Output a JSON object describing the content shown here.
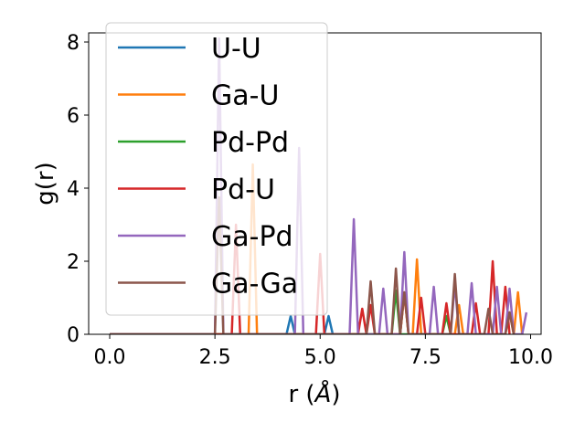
{
  "chart_data": {
    "type": "line",
    "title": "",
    "xlabel_prefix": "r (",
    "xlabel_unit": "Å",
    "xlabel_suffix": ")",
    "ylabel": "g(r)",
    "xlim": [
      -0.5,
      10.25
    ],
    "ylim": [
      0,
      8.25
    ],
    "xticks": [
      0.0,
      2.5,
      5.0,
      7.5,
      10.0
    ],
    "xtick_labels": [
      "0.0",
      "2.5",
      "5.0",
      "7.5",
      "10.0"
    ],
    "yticks": [
      0,
      2,
      4,
      6,
      8
    ],
    "ytick_labels": [
      "0",
      "2",
      "4",
      "6",
      "8"
    ],
    "grid": false,
    "legend_position": "top-left",
    "series": [
      {
        "name": "U-U",
        "color": "#1f77b4",
        "x": [
          0,
          4.2,
          4.3,
          4.4,
          5.1,
          5.2,
          5.3
        ],
        "y": [
          0,
          0,
          0.5,
          0,
          0,
          0.5,
          0
        ]
      },
      {
        "name": "Ga-U",
        "color": "#ff7f0e",
        "x": [
          0,
          3.3,
          3.4,
          3.5,
          6.9,
          7.0,
          7.1,
          7.2,
          7.3,
          7.4,
          7.5,
          8.2,
          8.3,
          8.4,
          9.4,
          9.5,
          9.6,
          9.7,
          9.8
        ],
        "y": [
          0,
          0,
          4.65,
          0,
          0,
          1.1,
          0,
          0,
          2.05,
          0,
          0,
          0,
          0.8,
          0,
          0,
          0.6,
          0,
          1.15,
          0
        ]
      },
      {
        "name": "Pd-Pd",
        "color": "#2ca02c",
        "x": [
          0,
          6.7,
          6.8,
          6.9,
          7.9,
          8.0,
          8.1
        ],
        "y": [
          0,
          0,
          1.2,
          0,
          0,
          0.5,
          0
        ]
      },
      {
        "name": "Pd-U",
        "color": "#d62728",
        "x": [
          0,
          2.9,
          3.0,
          3.1,
          4.9,
          5.0,
          5.1,
          5.9,
          6.0,
          6.1,
          6.2,
          6.3,
          6.9,
          7.0,
          7.1,
          7.3,
          7.4,
          7.5,
          7.9,
          8.0,
          8.1,
          8.6,
          8.7,
          8.8,
          9.0,
          9.1,
          9.2,
          9.3,
          9.4,
          9.5
        ],
        "y": [
          0,
          0,
          3.0,
          0,
          0,
          2.2,
          0,
          0,
          0.7,
          0,
          0.8,
          0,
          0,
          1.15,
          0,
          0,
          1.0,
          0,
          0,
          0.85,
          0,
          0,
          0.85,
          0,
          0,
          2.0,
          0,
          0,
          1.3,
          0
        ]
      },
      {
        "name": "Ga-Pd",
        "color": "#9467bd",
        "x": [
          0,
          2.5,
          2.6,
          2.7,
          4.4,
          4.5,
          4.6,
          5.7,
          5.8,
          5.9,
          6.4,
          6.5,
          6.6,
          6.9,
          7.0,
          7.1,
          7.6,
          7.7,
          7.8,
          8.1,
          8.2,
          8.3,
          8.5,
          8.6,
          8.7,
          9.1,
          9.2,
          9.3,
          9.4,
          9.5,
          9.6,
          9.8,
          9.9
        ],
        "y": [
          0,
          0,
          8.1,
          0,
          0,
          5.1,
          0,
          0,
          3.15,
          0,
          0,
          1.25,
          0,
          0,
          2.25,
          0,
          0,
          1.3,
          0,
          0,
          1.4,
          0,
          0,
          1.4,
          0,
          0,
          1.3,
          0,
          0,
          1.25,
          0,
          0,
          0.6
        ]
      },
      {
        "name": "Ga-Ga",
        "color": "#8c564b",
        "x": [
          0,
          2.5,
          2.6,
          2.7,
          6.1,
          6.2,
          6.3,
          6.7,
          6.8,
          6.9,
          7.0,
          7.1,
          8.1,
          8.2,
          8.3,
          8.9,
          9.0,
          9.1,
          9.4,
          9.5,
          9.6
        ],
        "y": [
          0,
          0,
          3.75,
          0,
          0,
          1.45,
          0,
          0,
          1.8,
          0,
          1.15,
          0,
          0,
          1.65,
          0,
          0,
          0.7,
          0,
          0,
          0.6,
          0
        ]
      }
    ]
  }
}
